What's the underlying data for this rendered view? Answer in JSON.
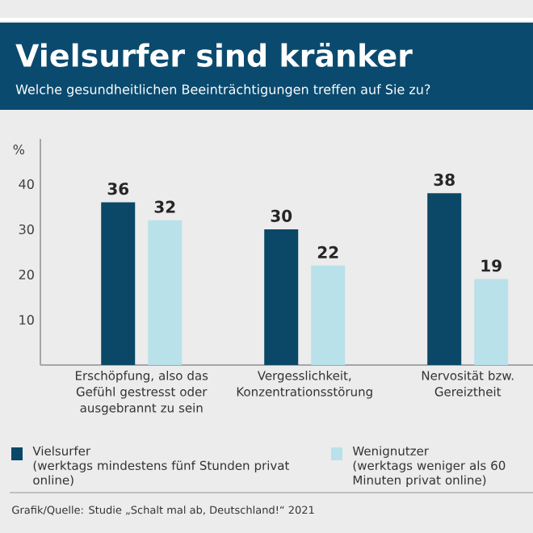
{
  "chart_data": {
    "type": "bar",
    "title": "Vielsurfer sind kränker",
    "subtitle": "Welche gesundheitlichen Beeinträchtigungen treffen auf Sie zu?",
    "ylabel": "%",
    "categories": [
      "Erschöpfung, also das Gefühl gestresst oder ausgebrannt zu sein",
      "Vergesslichkeit, Konzentrationsstörung",
      "Nervosität bzw. Gereiztheit"
    ],
    "series": [
      {
        "name": "Vielsurfer",
        "color": "#0b4766",
        "values": [
          36,
          30,
          38
        ]
      },
      {
        "name": "Wenignutzer",
        "color": "#b9e1ea",
        "values": [
          32,
          22,
          19
        ]
      }
    ],
    "ylim": [
      0,
      50
    ],
    "yticks": [
      10,
      20,
      30,
      40
    ],
    "data_labels": true,
    "legend": "bottom",
    "grid": false,
    "annotations": [
      "(werktags mindestens fünf Stunden privat online)",
      "(werktags weniger als 60 Minuten privat online)",
      "Grafik/Quelle: Studie „Schalt mal ab, Deutschland!“ 2021"
    ]
  }
}
